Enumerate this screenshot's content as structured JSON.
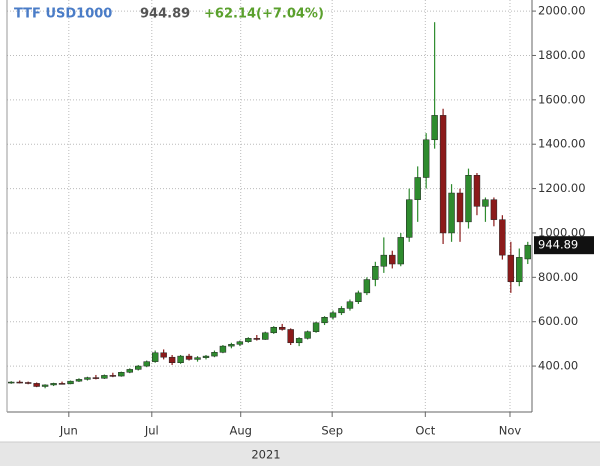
{
  "chart_data": {
    "type": "candlestick",
    "title": "TTF USD1000",
    "change": "+62.14(+7.04%)",
    "open": [
      325,
      328,
      326,
      322,
      308,
      315,
      322,
      320,
      332,
      340,
      348,
      345,
      358,
      355,
      372,
      385,
      400,
      420,
      460,
      440,
      415,
      445,
      430,
      438,
      445,
      462,
      490,
      498,
      510,
      525,
      520,
      550,
      575,
      565,
      505,
      525,
      555,
      595,
      620,
      640,
      660,
      690,
      730,
      790,
      850,
      900,
      860,
      980,
      1150,
      1250,
      1420,
      1530,
      1000,
      1180,
      1050,
      1260,
      1120,
      1150,
      1060,
      900,
      780,
      882.75
    ],
    "high": [
      332,
      335,
      330,
      326,
      318,
      325,
      330,
      335,
      345,
      352,
      360,
      362,
      370,
      375,
      390,
      405,
      425,
      470,
      475,
      450,
      450,
      455,
      445,
      450,
      470,
      495,
      505,
      515,
      530,
      540,
      555,
      580,
      590,
      570,
      530,
      560,
      600,
      625,
      650,
      670,
      700,
      740,
      800,
      870,
      980,
      920,
      1000,
      1200,
      1300,
      1450,
      1950,
      1560,
      1220,
      1200,
      1290,
      1270,
      1160,
      1160,
      1080,
      960,
      930,
      960
    ],
    "low": [
      320,
      322,
      318,
      305,
      300,
      310,
      318,
      318,
      328,
      335,
      340,
      342,
      350,
      352,
      368,
      380,
      395,
      415,
      430,
      405,
      410,
      425,
      420,
      430,
      440,
      458,
      480,
      490,
      505,
      515,
      518,
      545,
      560,
      495,
      490,
      520,
      550,
      585,
      610,
      630,
      650,
      680,
      720,
      760,
      820,
      840,
      850,
      960,
      1050,
      1200,
      1380,
      950,
      960,
      960,
      1020,
      1080,
      1050,
      1030,
      880,
      730,
      760,
      860
    ],
    "close": [
      328,
      326,
      322,
      308,
      315,
      322,
      320,
      332,
      340,
      348,
      345,
      358,
      355,
      372,
      385,
      400,
      420,
      460,
      440,
      415,
      445,
      430,
      438,
      445,
      462,
      490,
      498,
      510,
      525,
      520,
      550,
      575,
      565,
      505,
      525,
      555,
      595,
      620,
      640,
      660,
      690,
      730,
      790,
      850,
      900,
      860,
      980,
      1150,
      1250,
      1420,
      1530,
      1000,
      1180,
      1050,
      1260,
      1120,
      1150,
      1060,
      900,
      780,
      890,
      944.89
    ],
    "up_color": "#2e8b2e",
    "down_color": "#8b1a1a",
    "xlim": [
      0,
      62
    ],
    "xticks": [
      {
        "value": 7.3,
        "label": "Jun"
      },
      {
        "value": 17.1,
        "label": "Jul"
      },
      {
        "value": 27.6,
        "label": "Aug"
      },
      {
        "value": 38.4,
        "label": "Sep"
      },
      {
        "value": 49.4,
        "label": "Oct"
      },
      {
        "value": 59.4,
        "label": "Nov"
      }
    ],
    "x_group_label": "2021",
    "ylim": [
      193,
      2050
    ],
    "yticks": [
      {
        "value": 400,
        "label": "400.00"
      },
      {
        "value": 600,
        "label": "600.00"
      },
      {
        "value": 800,
        "label": "800.00"
      },
      {
        "value": 1000,
        "label": "1000.00"
      },
      {
        "value": 1200,
        "label": "1200.00"
      },
      {
        "value": 1400,
        "label": "1400.00"
      },
      {
        "value": 1600,
        "label": "1600.00"
      },
      {
        "value": 1800,
        "label": "1800.00"
      },
      {
        "value": 2000,
        "label": "2000.00"
      }
    ],
    "grid": true
  }
}
